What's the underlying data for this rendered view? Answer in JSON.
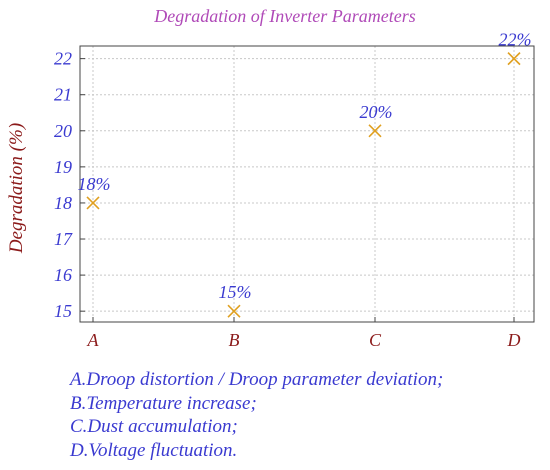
{
  "chart_data": {
    "type": "scatter",
    "title": "Degradation of Inverter Parameters",
    "ylabel": "Degradation (%)",
    "xlabel": "",
    "categories": [
      "A",
      "B",
      "C",
      "D"
    ],
    "values": [
      18,
      15,
      20,
      22
    ],
    "data_labels": [
      "18%",
      "15%",
      "20%",
      "22%"
    ],
    "y_ticks": [
      "15",
      "16",
      "17",
      "18",
      "19",
      "20",
      "21",
      "22"
    ],
    "ylim": [
      14.7,
      22.35
    ],
    "marker": "x",
    "grid": true
  },
  "legend_notes": [
    "A.Droop distortion / Droop parameter deviation;",
    "B.Temperature increase;",
    "C.Dust accumulation;",
    "D.Voltage fluctuation."
  ],
  "colors": {
    "title": "#b04ab8",
    "ylabel": "#8b1a1a",
    "y_ticks": "#3a3ad0",
    "x_ticks": "#8b1a1a",
    "marker": "#e0a020",
    "data_labels": "#3a3ad0",
    "grid": "#c8c8c8",
    "legend_text": "#3a3ad0"
  }
}
